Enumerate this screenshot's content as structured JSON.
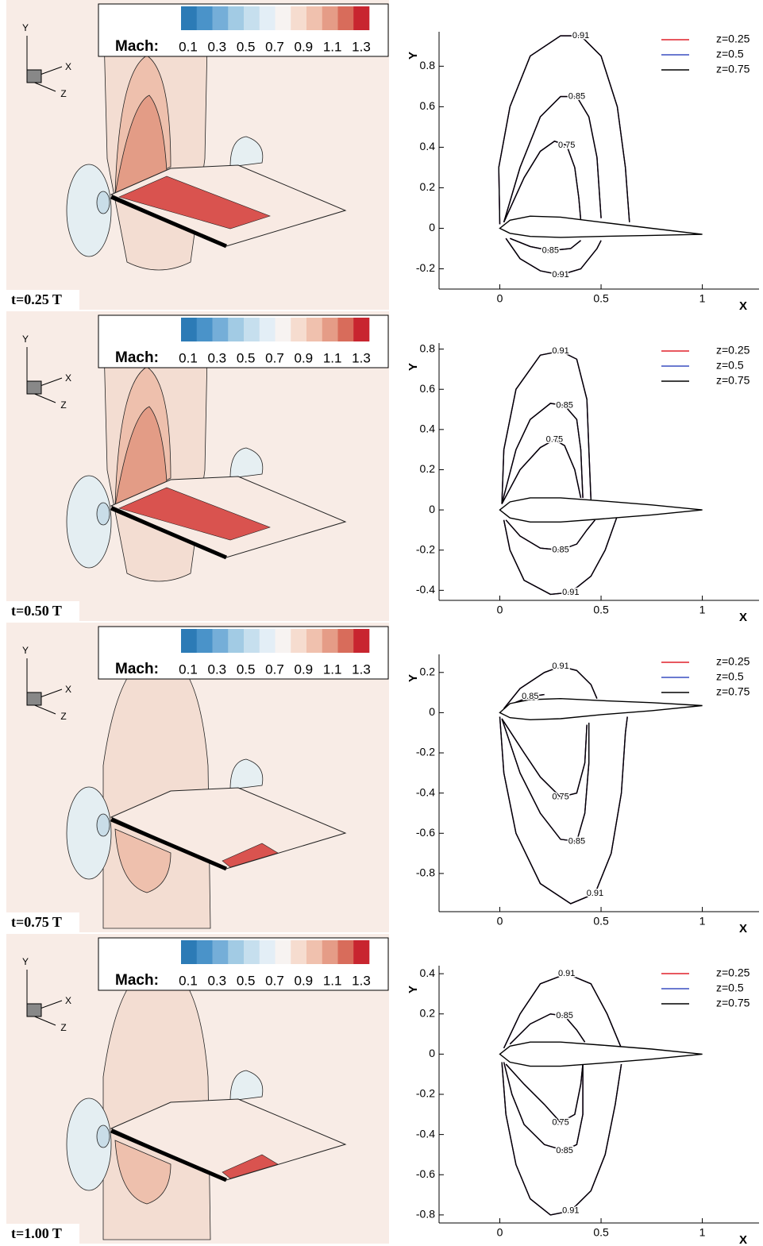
{
  "chart_data": [
    {
      "type": "contour",
      "time_label": "t=0.25 T",
      "triad": [
        "Y",
        "X",
        "Z"
      ],
      "colorbar": {
        "label": "Mach:",
        "ticks": [
          0.1,
          0.3,
          0.5,
          0.7,
          0.9,
          1.1,
          1.3
        ],
        "colors": [
          "#2c7bb6",
          "#4a93c9",
          "#75aed8",
          "#a2cbe4",
          "#c6dfee",
          "#e3eef6",
          "#f7f3f1",
          "#f6dccf",
          "#f0c1ae",
          "#e59c87",
          "#d86c5b",
          "#c8252f"
        ]
      },
      "xlabel": "X",
      "ylabel": "Y",
      "xlim": [
        -0.3,
        1.28
      ],
      "ylim": [
        -0.3,
        0.97
      ],
      "xticks": [
        0,
        0.5,
        1
      ],
      "yticks": [
        -0.2,
        0,
        0.2,
        0.4,
        0.6,
        0.8
      ],
      "series": [
        {
          "name": "z=0.25",
          "color": "#e0202a"
        },
        {
          "name": "z=0.5",
          "color": "#3a4fc0"
        },
        {
          "name": "z=0.75",
          "color": "#000000"
        }
      ],
      "airfoil": {
        "x": [
          0,
          0.05,
          0.15,
          0.3,
          0.5,
          0.75,
          1,
          0.75,
          0.5,
          0.3,
          0.15,
          0.05,
          0
        ],
        "y": [
          0,
          0.04,
          0.06,
          0.055,
          0.03,
          0,
          -0.03,
          -0.035,
          -0.04,
          -0.045,
          -0.04,
          -0.025,
          0
        ]
      },
      "contours": [
        {
          "level": 0.91,
          "x": [
            0,
            -0.005,
            0.05,
            0.15,
            0.3,
            0.4,
            0.5,
            0.58,
            0.62,
            0.64
          ],
          "y": [
            0.02,
            0.3,
            0.6,
            0.85,
            0.95,
            0.95,
            0.85,
            0.6,
            0.3,
            0.03
          ]
        },
        {
          "level": 0.91,
          "x": [
            0.03,
            0.1,
            0.2,
            0.3,
            0.4,
            0.48,
            0.5
          ],
          "y": [
            -0.05,
            -0.15,
            -0.21,
            -0.23,
            -0.2,
            -0.1,
            -0.06
          ]
        },
        {
          "level": 0.85,
          "x": [
            0.02,
            0.1,
            0.2,
            0.3,
            0.38,
            0.44,
            0.48,
            0.5
          ],
          "y": [
            0.03,
            0.3,
            0.55,
            0.65,
            0.65,
            0.55,
            0.35,
            0.05
          ]
        },
        {
          "level": 0.85,
          "x": [
            0.05,
            0.15,
            0.25,
            0.35,
            0.4
          ],
          "y": [
            -0.05,
            -0.09,
            -0.11,
            -0.1,
            -0.06
          ]
        },
        {
          "level": 0.75,
          "x": [
            0.02,
            0.12,
            0.2,
            0.27,
            0.33,
            0.37,
            0.39,
            0.4
          ],
          "y": [
            0.03,
            0.25,
            0.38,
            0.43,
            0.41,
            0.3,
            0.15,
            0.04
          ]
        }
      ]
    },
    {
      "type": "contour",
      "time_label": "t=0.50 T",
      "triad": [
        "Y",
        "X",
        "Z"
      ],
      "colorbar": {
        "label": "Mach:",
        "ticks": [
          0.1,
          0.3,
          0.5,
          0.7,
          0.9,
          1.1,
          1.3
        ],
        "colors": [
          "#2c7bb6",
          "#4a93c9",
          "#75aed8",
          "#a2cbe4",
          "#c6dfee",
          "#e3eef6",
          "#f7f3f1",
          "#f6dccf",
          "#f0c1ae",
          "#e59c87",
          "#d86c5b",
          "#c8252f"
        ]
      },
      "xlabel": "X",
      "ylabel": "Y",
      "xlim": [
        -0.3,
        1.28
      ],
      "ylim": [
        -0.45,
        0.83
      ],
      "xticks": [
        0,
        0.5,
        1
      ],
      "yticks": [
        -0.4,
        -0.2,
        0,
        0.2,
        0.4,
        0.6,
        0.8
      ],
      "series": [
        {
          "name": "z=0.25",
          "color": "#e0202a"
        },
        {
          "name": "z=0.5",
          "color": "#3a4fc0"
        },
        {
          "name": "z=0.75",
          "color": "#000000"
        }
      ],
      "airfoil": {
        "x": [
          0,
          0.05,
          0.15,
          0.3,
          0.5,
          0.75,
          1,
          0.75,
          0.5,
          0.3,
          0.15,
          0.05,
          0
        ],
        "y": [
          0,
          0.04,
          0.06,
          0.06,
          0.045,
          0.025,
          0,
          -0.025,
          -0.045,
          -0.06,
          -0.06,
          -0.04,
          0
        ]
      },
      "contours": [
        {
          "level": 0.91,
          "x": [
            0.01,
            0.02,
            0.08,
            0.2,
            0.3,
            0.38,
            0.43,
            0.44,
            0.45
          ],
          "y": [
            0.03,
            0.3,
            0.6,
            0.77,
            0.79,
            0.75,
            0.55,
            0.3,
            0.05
          ]
        },
        {
          "level": 0.91,
          "x": [
            0.02,
            0.05,
            0.12,
            0.25,
            0.35,
            0.45,
            0.52,
            0.58
          ],
          "y": [
            -0.05,
            -0.2,
            -0.35,
            -0.42,
            -0.41,
            -0.33,
            -0.2,
            -0.03
          ]
        },
        {
          "level": 0.85,
          "x": [
            0.01,
            0.08,
            0.15,
            0.25,
            0.32,
            0.38,
            0.4,
            0.41
          ],
          "y": [
            0.03,
            0.3,
            0.45,
            0.53,
            0.52,
            0.45,
            0.3,
            0.06
          ]
        },
        {
          "level": 0.85,
          "x": [
            0.03,
            0.1,
            0.2,
            0.3,
            0.38,
            0.43,
            0.47
          ],
          "y": [
            -0.05,
            -0.13,
            -0.19,
            -0.2,
            -0.17,
            -0.1,
            -0.05
          ]
        },
        {
          "level": 0.75,
          "x": [
            0.01,
            0.1,
            0.2,
            0.27,
            0.32,
            0.37,
            0.4
          ],
          "y": [
            0.03,
            0.2,
            0.31,
            0.35,
            0.32,
            0.2,
            0.06
          ]
        }
      ]
    },
    {
      "type": "contour",
      "time_label": "t=0.75 T",
      "triad": [
        "Y",
        "X",
        "Z"
      ],
      "colorbar": {
        "label": "Mach:",
        "ticks": [
          0.1,
          0.3,
          0.5,
          0.7,
          0.9,
          1.1,
          1.3
        ],
        "colors": [
          "#2c7bb6",
          "#4a93c9",
          "#75aed8",
          "#a2cbe4",
          "#c6dfee",
          "#e3eef6",
          "#f7f3f1",
          "#f6dccf",
          "#f0c1ae",
          "#e59c87",
          "#d86c5b",
          "#c8252f"
        ]
      },
      "xlabel": "X",
      "ylabel": "Y",
      "xlim": [
        -0.3,
        1.28
      ],
      "ylim": [
        -0.99,
        0.29
      ],
      "xticks": [
        0,
        0.5,
        1
      ],
      "yticks": [
        -0.8,
        -0.6,
        -0.4,
        -0.2,
        0,
        0.2
      ],
      "series": [
        {
          "name": "z=0.25",
          "color": "#e0202a"
        },
        {
          "name": "z=0.5",
          "color": "#3a4fc0"
        },
        {
          "name": "z=0.75",
          "color": "#000000"
        }
      ],
      "airfoil": {
        "x": [
          0,
          0.05,
          0.15,
          0.3,
          0.5,
          0.75,
          1,
          0.75,
          0.5,
          0.3,
          0.15,
          0.05,
          0
        ],
        "y": [
          0,
          0.045,
          0.065,
          0.07,
          0.06,
          0.05,
          0.035,
          0.01,
          -0.01,
          -0.03,
          -0.035,
          -0.025,
          0
        ]
      },
      "contours": [
        {
          "level": 0.91,
          "x": [
            0.02,
            0.1,
            0.22,
            0.3,
            0.38,
            0.45,
            0.48
          ],
          "y": [
            0.02,
            0.12,
            0.2,
            0.23,
            0.21,
            0.14,
            0.07
          ]
        },
        {
          "level": 0.85,
          "x": [
            0.05,
            0.15,
            0.22
          ],
          "y": [
            0.04,
            0.08,
            0.09
          ]
        },
        {
          "level": 0.91,
          "x": [
            0,
            0.02,
            0.08,
            0.2,
            0.35,
            0.47,
            0.55,
            0.6,
            0.62,
            0.63
          ],
          "y": [
            -0.02,
            -0.3,
            -0.6,
            -0.85,
            -0.95,
            -0.9,
            -0.7,
            -0.4,
            -0.1,
            -0.02
          ]
        },
        {
          "level": 0.85,
          "x": [
            0.01,
            0.1,
            0.2,
            0.3,
            0.38,
            0.42,
            0.44,
            0.44
          ],
          "y": [
            -0.03,
            -0.3,
            -0.5,
            -0.63,
            -0.64,
            -0.5,
            -0.25,
            -0.05
          ]
        },
        {
          "level": 0.75,
          "x": [
            0.01,
            0.12,
            0.2,
            0.3,
            0.38,
            0.42,
            0.43
          ],
          "y": [
            -0.03,
            -0.2,
            -0.32,
            -0.42,
            -0.4,
            -0.25,
            -0.06
          ]
        }
      ]
    },
    {
      "type": "contour",
      "time_label": "t=1.00 T",
      "triad": [
        "Y",
        "X",
        "Z"
      ],
      "colorbar": {
        "label": "Mach:",
        "ticks": [
          0.1,
          0.3,
          0.5,
          0.7,
          0.9,
          1.1,
          1.3
        ],
        "colors": [
          "#2c7bb6",
          "#4a93c9",
          "#75aed8",
          "#a2cbe4",
          "#c6dfee",
          "#e3eef6",
          "#f7f3f1",
          "#f6dccf",
          "#f0c1ae",
          "#e59c87",
          "#d86c5b",
          "#c8252f"
        ]
      },
      "xlabel": "X",
      "ylabel": "Y",
      "xlim": [
        -0.3,
        1.28
      ],
      "ylim": [
        -0.84,
        0.44
      ],
      "xticks": [
        0,
        0.5,
        1
      ],
      "yticks": [
        -0.8,
        -0.6,
        -0.4,
        -0.2,
        0,
        0.2,
        0.4
      ],
      "series": [
        {
          "name": "z=0.25",
          "color": "#e0202a"
        },
        {
          "name": "z=0.5",
          "color": "#3a4fc0"
        },
        {
          "name": "z=0.75",
          "color": "#000000"
        }
      ],
      "airfoil": {
        "x": [
          0,
          0.05,
          0.15,
          0.3,
          0.5,
          0.75,
          1,
          0.75,
          0.5,
          0.3,
          0.15,
          0.05,
          0
        ],
        "y": [
          0,
          0.04,
          0.06,
          0.06,
          0.045,
          0.025,
          0,
          -0.025,
          -0.045,
          -0.06,
          -0.06,
          -0.04,
          0
        ]
      },
      "contours": [
        {
          "level": 0.91,
          "x": [
            0.02,
            0.1,
            0.2,
            0.33,
            0.45,
            0.53,
            0.6
          ],
          "y": [
            0.03,
            0.2,
            0.35,
            0.4,
            0.35,
            0.2,
            0.03
          ]
        },
        {
          "level": 0.85,
          "x": [
            0.05,
            0.15,
            0.25,
            0.32,
            0.38,
            0.42
          ],
          "y": [
            0.05,
            0.15,
            0.2,
            0.19,
            0.12,
            0.06
          ]
        },
        {
          "level": 0.91,
          "x": [
            0.01,
            0.03,
            0.08,
            0.15,
            0.25,
            0.35,
            0.45,
            0.52,
            0.57,
            0.6
          ],
          "y": [
            -0.04,
            -0.3,
            -0.55,
            -0.72,
            -0.8,
            -0.78,
            -0.68,
            -0.5,
            -0.25,
            -0.05
          ]
        },
        {
          "level": 0.85,
          "x": [
            0.02,
            0.06,
            0.12,
            0.22,
            0.32,
            0.38,
            0.41,
            0.41
          ],
          "y": [
            -0.04,
            -0.2,
            -0.35,
            -0.45,
            -0.48,
            -0.45,
            -0.3,
            -0.04
          ]
        },
        {
          "level": 0.75,
          "x": [
            0.03,
            0.12,
            0.22,
            0.3,
            0.37,
            0.4,
            0.41
          ],
          "y": [
            -0.05,
            -0.15,
            -0.25,
            -0.34,
            -0.3,
            -0.15,
            -0.05
          ]
        }
      ]
    }
  ]
}
